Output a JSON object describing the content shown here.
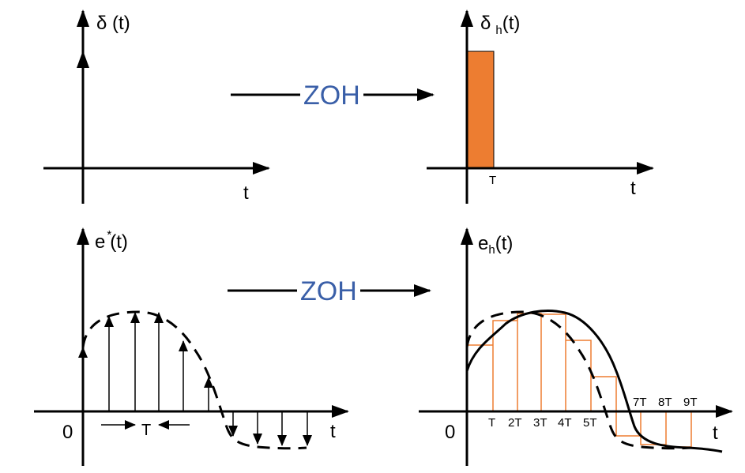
{
  "panels": {
    "top_left": {
      "y_label": "δ (t)",
      "x_label": "t"
    },
    "top_right": {
      "y_label_main": "δ",
      "y_label_sub": "h",
      "y_label_tail": "(t)",
      "x_label": "t",
      "tick": "T"
    },
    "bottom_left": {
      "y_label_main": "e",
      "y_label_sup": "*",
      "y_label_tail": "(t)",
      "x_label": "t",
      "origin": "0",
      "period": "T"
    },
    "bottom_right": {
      "y_label_main": "e",
      "y_label_sub": "h",
      "y_label_tail": "(t)",
      "x_label": "t",
      "origin": "0",
      "ticks": [
        "T",
        "2T",
        "3T",
        "4T",
        "5T",
        "7T",
        "8T",
        "9T"
      ]
    }
  },
  "arrows": {
    "top": "ZOH",
    "bottom": "ZOH"
  },
  "colors": {
    "hold": "#ed7d31",
    "zoh_text": "#3a5fa8",
    "axis": "#000000"
  }
}
